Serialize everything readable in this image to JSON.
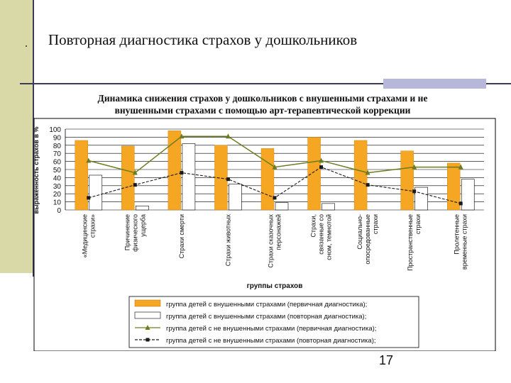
{
  "slide": {
    "title": "Повторная диагностика страхов у дошкольников",
    "page_number": "17"
  },
  "colors": {
    "orange": "#f5a623",
    "white_bar": "#ffffff",
    "green_line": "#6b7d1e",
    "dark_line": "#1a1a1a"
  },
  "chart_data": {
    "type": "bar",
    "title_lines": [
      "Динамика снижения страхов у дошкольников с внушенными страхами и не",
      "внушенными страхами с помощью арт-терапевтической коррекции"
    ],
    "xlabel": "группы страхов",
    "ylabel": "выраженность страхов в %",
    "ylim": [
      0,
      100
    ],
    "yticks": [
      0,
      10,
      20,
      30,
      40,
      50,
      60,
      70,
      80,
      90,
      100
    ],
    "grid": true,
    "legend_position": "bottom",
    "categories": [
      [
        "«Медицинские",
        "страхи»"
      ],
      [
        "Причинение",
        "физического",
        "ущерба"
      ],
      [
        "Страхи смерти"
      ],
      [
        "Страхи животных"
      ],
      [
        "Страхи сказочных",
        "персонажей"
      ],
      [
        "Страхи,",
        "связанные со",
        "сном, темнотой"
      ],
      [
        "Социально-",
        "опосредованные",
        "страхи"
      ],
      [
        "Пространственные",
        "страхи"
      ],
      [
        "Пролетенные",
        "временные страхи"
      ]
    ],
    "series": [
      {
        "name": "группа детей с внушенными страхами (первичная диагностика);",
        "kind": "bar",
        "color": "#f5a623",
        "values": [
          86,
          79,
          98,
          80,
          76,
          90,
          86,
          73,
          58
        ]
      },
      {
        "name": "группа детей с внушенными страхами (повторная диагностика);",
        "kind": "bar",
        "color": "#ffffff",
        "values": [
          43,
          5,
          82,
          32,
          9,
          8,
          0,
          28,
          38
        ]
      },
      {
        "name": "группа детей с не внушенными страхами (первичная диагностика);",
        "kind": "line",
        "color": "#6b7d1e",
        "values": [
          61,
          46,
          91,
          91,
          53,
          61,
          46,
          53,
          53
        ]
      },
      {
        "name": "группа детей с не внушенными страхами (повторная диагностика);",
        "kind": "line",
        "color": "#1a1a1a",
        "values": [
          15,
          31,
          46,
          38,
          15,
          53,
          31,
          23,
          8
        ]
      }
    ]
  }
}
